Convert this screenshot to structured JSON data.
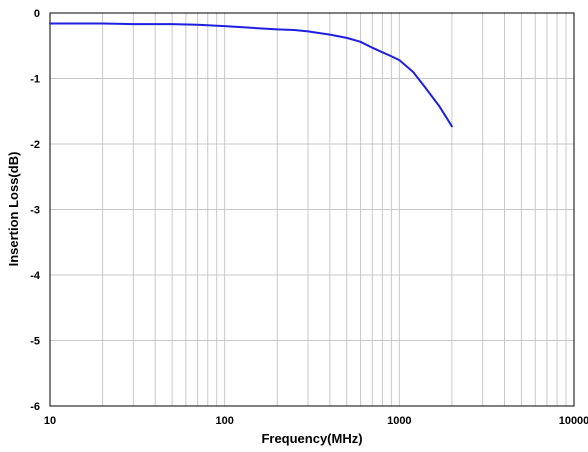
{
  "chart_data": {
    "type": "line",
    "xlabel": "Frequency(MHz)",
    "ylabel": "Insertion Loss(dB)",
    "xscale": "log",
    "xlim": [
      10,
      10000
    ],
    "ylim": [
      -6,
      0
    ],
    "x_ticks": [
      "10",
      "100",
      "1000",
      "10000"
    ],
    "y_ticks": [
      "0",
      "-1",
      "-2",
      "-3",
      "-4",
      "-5",
      "-6"
    ],
    "grid": true,
    "series": [
      {
        "color": "#1f1fe0",
        "x": [
          10,
          20,
          30,
          50,
          70,
          100,
          150,
          200,
          250,
          300,
          400,
          500,
          600,
          700,
          800,
          900,
          1000,
          1200,
          1400,
          1700,
          2000
        ],
        "y": [
          -0.16,
          -0.16,
          -0.17,
          -0.17,
          -0.18,
          -0.2,
          -0.23,
          -0.25,
          -0.26,
          -0.28,
          -0.33,
          -0.38,
          -0.44,
          -0.53,
          -0.6,
          -0.66,
          -0.72,
          -0.9,
          -1.13,
          -1.43,
          -1.73
        ]
      }
    ]
  }
}
